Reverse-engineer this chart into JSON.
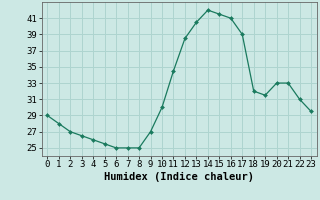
{
  "x": [
    0,
    1,
    2,
    3,
    4,
    5,
    6,
    7,
    8,
    9,
    10,
    11,
    12,
    13,
    14,
    15,
    16,
    17,
    18,
    19,
    20,
    21,
    22,
    23
  ],
  "y": [
    29,
    28,
    27,
    26.5,
    26,
    25.5,
    25,
    25,
    25,
    27,
    30,
    34.5,
    38.5,
    40.5,
    42,
    41.5,
    41,
    39,
    32,
    31.5,
    33,
    33,
    31,
    29.5
  ],
  "line_color": "#1a7a5e",
  "marker_color": "#1a7a5e",
  "bg_color": "#cce8e4",
  "grid_color": "#aed4cf",
  "xlabel": "Humidex (Indice chaleur)",
  "ylim": [
    24,
    43
  ],
  "xlim": [
    -0.5,
    23.5
  ],
  "yticks": [
    25,
    27,
    29,
    31,
    33,
    35,
    37,
    39,
    41
  ],
  "xticks": [
    0,
    1,
    2,
    3,
    4,
    5,
    6,
    7,
    8,
    9,
    10,
    11,
    12,
    13,
    14,
    15,
    16,
    17,
    18,
    19,
    20,
    21,
    22,
    23
  ],
  "xlabel_fontsize": 7.5,
  "tick_fontsize": 6.5
}
